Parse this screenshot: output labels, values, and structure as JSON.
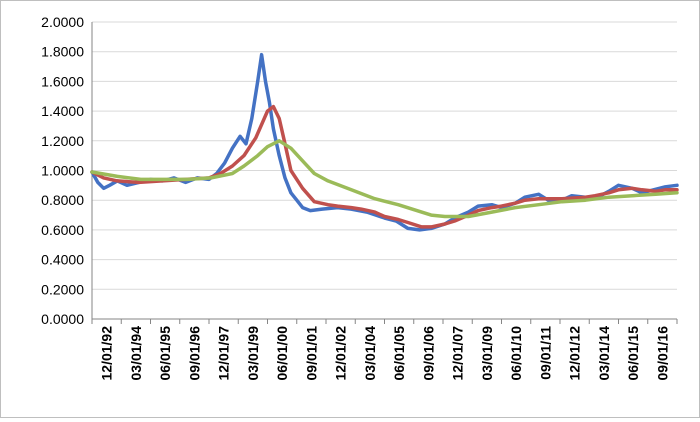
{
  "chart_data": {
    "type": "line",
    "ylim": [
      0,
      2
    ],
    "y_ticks": [
      "0.0000",
      "0.2000",
      "0.4000",
      "0.6000",
      "0.8000",
      "1.0000",
      "1.2000",
      "1.4000",
      "1.6000",
      "1.8000",
      "2.0000"
    ],
    "x_tick_labels": [
      "12/01/92",
      "03/01/94",
      "06/01/95",
      "09/01/96",
      "12/01/97",
      "03/01/99",
      "06/01/00",
      "09/01/01",
      "12/01/02",
      "03/01/04",
      "06/01/05",
      "09/01/06",
      "12/01/07",
      "03/01/09",
      "06/01/10",
      "09/01/11",
      "12/01/12",
      "03/01/14",
      "06/01/15",
      "09/01/16"
    ],
    "x_range": [
      "1992-12-01",
      "2017-12-01"
    ],
    "grid": "horizontal",
    "legend": "none",
    "series": [
      {
        "color": "#4472C4",
        "points": [
          [
            "1992-12-01",
            0.99
          ],
          [
            "1993-03-01",
            0.92
          ],
          [
            "1993-06-01",
            0.88
          ],
          [
            "1993-09-01",
            0.9
          ],
          [
            "1994-01-01",
            0.93
          ],
          [
            "1994-06-01",
            0.9
          ],
          [
            "1994-12-01",
            0.92
          ],
          [
            "1995-06-01",
            0.94
          ],
          [
            "1995-12-01",
            0.93
          ],
          [
            "1996-06-01",
            0.95
          ],
          [
            "1996-12-01",
            0.92
          ],
          [
            "1997-06-01",
            0.95
          ],
          [
            "1997-12-01",
            0.94
          ],
          [
            "1998-04-01",
            0.98
          ],
          [
            "1998-08-01",
            1.05
          ],
          [
            "1998-12-01",
            1.15
          ],
          [
            "1999-04-01",
            1.23
          ],
          [
            "1999-07-01",
            1.18
          ],
          [
            "1999-10-01",
            1.35
          ],
          [
            "2000-01-01",
            1.6
          ],
          [
            "2000-03-01",
            1.78
          ],
          [
            "2000-05-01",
            1.6
          ],
          [
            "2000-07-01",
            1.46
          ],
          [
            "2000-09-01",
            1.28
          ],
          [
            "2000-12-01",
            1.1
          ],
          [
            "2001-03-01",
            0.95
          ],
          [
            "2001-06-01",
            0.85
          ],
          [
            "2001-09-01",
            0.8
          ],
          [
            "2001-12-01",
            0.75
          ],
          [
            "2002-04-01",
            0.73
          ],
          [
            "2002-10-01",
            0.74
          ],
          [
            "2003-06-01",
            0.75
          ],
          [
            "2004-01-01",
            0.74
          ],
          [
            "2004-09-01",
            0.72
          ],
          [
            "2005-06-01",
            0.68
          ],
          [
            "2005-12-01",
            0.66
          ],
          [
            "2006-06-01",
            0.61
          ],
          [
            "2006-12-01",
            0.6
          ],
          [
            "2007-06-01",
            0.61
          ],
          [
            "2008-01-01",
            0.64
          ],
          [
            "2008-06-01",
            0.68
          ],
          [
            "2009-01-01",
            0.72
          ],
          [
            "2009-06-01",
            0.76
          ],
          [
            "2010-01-01",
            0.77
          ],
          [
            "2010-06-01",
            0.75
          ],
          [
            "2011-01-01",
            0.78
          ],
          [
            "2011-06-01",
            0.82
          ],
          [
            "2012-01-01",
            0.84
          ],
          [
            "2012-06-01",
            0.8
          ],
          [
            "2013-01-01",
            0.8
          ],
          [
            "2013-06-01",
            0.83
          ],
          [
            "2014-01-01",
            0.82
          ],
          [
            "2014-06-01",
            0.81
          ],
          [
            "2015-01-01",
            0.86
          ],
          [
            "2015-06-01",
            0.9
          ],
          [
            "2016-01-01",
            0.88
          ],
          [
            "2016-06-01",
            0.85
          ],
          [
            "2016-12-01",
            0.87
          ],
          [
            "2017-06-01",
            0.89
          ],
          [
            "2017-12-01",
            0.9
          ]
        ]
      },
      {
        "color": "#C0504D",
        "points": [
          [
            "1992-12-01",
            0.99
          ],
          [
            "1993-06-01",
            0.95
          ],
          [
            "1994-01-01",
            0.93
          ],
          [
            "1994-12-01",
            0.92
          ],
          [
            "1995-12-01",
            0.93
          ],
          [
            "1996-12-01",
            0.94
          ],
          [
            "1997-12-01",
            0.95
          ],
          [
            "1998-06-01",
            0.98
          ],
          [
            "1998-12-01",
            1.03
          ],
          [
            "1999-06-01",
            1.1
          ],
          [
            "1999-12-01",
            1.22
          ],
          [
            "2000-06-01",
            1.4
          ],
          [
            "2000-09-01",
            1.43
          ],
          [
            "2000-12-01",
            1.35
          ],
          [
            "2001-03-01",
            1.18
          ],
          [
            "2001-06-01",
            1.0
          ],
          [
            "2001-12-01",
            0.88
          ],
          [
            "2002-06-01",
            0.79
          ],
          [
            "2003-01-01",
            0.77
          ],
          [
            "2003-06-01",
            0.76
          ],
          [
            "2004-01-01",
            0.75
          ],
          [
            "2004-06-01",
            0.74
          ],
          [
            "2005-01-01",
            0.72
          ],
          [
            "2005-06-01",
            0.69
          ],
          [
            "2006-01-01",
            0.67
          ],
          [
            "2006-06-01",
            0.65
          ],
          [
            "2007-01-01",
            0.62
          ],
          [
            "2007-06-01",
            0.62
          ],
          [
            "2008-01-01",
            0.64
          ],
          [
            "2008-06-01",
            0.66
          ],
          [
            "2009-01-01",
            0.7
          ],
          [
            "2009-06-01",
            0.73
          ],
          [
            "2010-01-01",
            0.75
          ],
          [
            "2010-06-01",
            0.76
          ],
          [
            "2011-01-01",
            0.78
          ],
          [
            "2011-06-01",
            0.8
          ],
          [
            "2012-01-01",
            0.81
          ],
          [
            "2012-06-01",
            0.81
          ],
          [
            "2013-01-01",
            0.81
          ],
          [
            "2014-01-01",
            0.82
          ],
          [
            "2014-06-01",
            0.83
          ],
          [
            "2015-01-01",
            0.85
          ],
          [
            "2015-06-01",
            0.87
          ],
          [
            "2016-01-01",
            0.88
          ],
          [
            "2016-06-01",
            0.87
          ],
          [
            "2017-01-01",
            0.86
          ],
          [
            "2017-06-01",
            0.87
          ],
          [
            "2017-12-01",
            0.87
          ]
        ]
      },
      {
        "color": "#9BBB59",
        "points": [
          [
            "1992-12-01",
            0.99
          ],
          [
            "1994-01-01",
            0.96
          ],
          [
            "1995-01-01",
            0.94
          ],
          [
            "1996-01-01",
            0.94
          ],
          [
            "1997-01-01",
            0.94
          ],
          [
            "1998-01-01",
            0.95
          ],
          [
            "1998-12-01",
            0.98
          ],
          [
            "1999-06-01",
            1.03
          ],
          [
            "2000-01-01",
            1.1
          ],
          [
            "2000-06-01",
            1.16
          ],
          [
            "2000-12-01",
            1.2
          ],
          [
            "2001-06-01",
            1.15
          ],
          [
            "2002-01-01",
            1.05
          ],
          [
            "2002-06-01",
            0.98
          ],
          [
            "2003-01-01",
            0.93
          ],
          [
            "2004-01-01",
            0.87
          ],
          [
            "2005-01-01",
            0.81
          ],
          [
            "2006-01-01",
            0.77
          ],
          [
            "2007-01-01",
            0.72
          ],
          [
            "2007-06-01",
            0.7
          ],
          [
            "2008-01-01",
            0.69
          ],
          [
            "2009-01-01",
            0.69
          ],
          [
            "2010-01-01",
            0.72
          ],
          [
            "2011-01-01",
            0.75
          ],
          [
            "2012-01-01",
            0.77
          ],
          [
            "2013-01-01",
            0.79
          ],
          [
            "2014-01-01",
            0.8
          ],
          [
            "2015-01-01",
            0.82
          ],
          [
            "2016-01-01",
            0.83
          ],
          [
            "2017-01-01",
            0.84
          ],
          [
            "2017-12-01",
            0.85
          ]
        ]
      }
    ]
  }
}
